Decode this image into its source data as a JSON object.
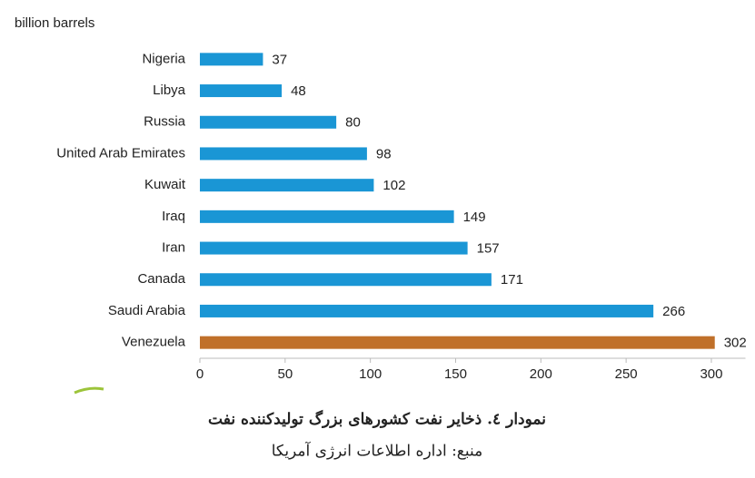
{
  "chart_data": {
    "type": "barh",
    "unit_label": "billion barrels",
    "title": "نمودار ٤. ذخایر نفت کشورهای بزرگ تولیدکننده نفت",
    "source": "منبع: اداره اطلاعات انرژی آمریکا",
    "categories": [
      "Nigeria",
      "Libya",
      "Russia",
      "United Arab Emirates",
      "Kuwait",
      "Iraq",
      "Iran",
      "Canada",
      "Saudi Arabia",
      "Venezuela"
    ],
    "values": [
      37,
      48,
      80,
      98,
      102,
      149,
      157,
      171,
      266,
      302
    ],
    "colors": [
      "#1a96d5",
      "#1a96d5",
      "#1a96d5",
      "#1a96d5",
      "#1a96d5",
      "#1a96d5",
      "#1a96d5",
      "#1a96d5",
      "#1a96d5",
      "#c0702a"
    ],
    "xlim": [
      0,
      320
    ],
    "xticks": [
      0,
      50,
      100,
      150,
      200,
      250,
      300
    ]
  }
}
